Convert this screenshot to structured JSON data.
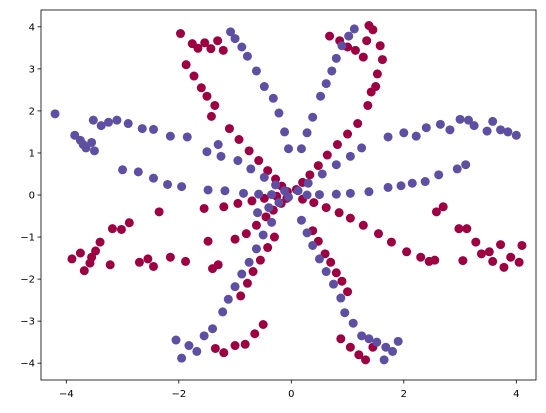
{
  "chart_data": {
    "type": "scatter",
    "title": "",
    "xlabel": "",
    "ylabel": "",
    "xlim": [
      -4.45,
      4.35
    ],
    "ylim": [
      -4.4,
      4.4
    ],
    "xticks": [
      -4,
      -2,
      0,
      2,
      4
    ],
    "yticks": [
      -4,
      -3,
      -2,
      -1,
      0,
      1,
      2,
      3,
      4
    ],
    "grid": false,
    "legend": "none",
    "series": [
      {
        "color": "#9e0142",
        "points": [
          [
            -1.97,
            3.84
          ],
          [
            -1.76,
            3.6
          ],
          [
            -1.66,
            3.49
          ],
          [
            -1.54,
            3.62
          ],
          [
            -1.43,
            3.48
          ],
          [
            -1.31,
            3.67
          ],
          [
            -1.21,
            3.44
          ],
          [
            -1.87,
            3.1
          ],
          [
            -1.73,
            2.83
          ],
          [
            -1.6,
            2.55
          ],
          [
            -1.5,
            2.35
          ],
          [
            -1.36,
            2.13
          ],
          [
            -1.42,
            1.87
          ],
          [
            -1.1,
            1.58
          ],
          [
            -0.93,
            1.32
          ],
          [
            -0.75,
            1.05
          ],
          [
            -0.58,
            0.82
          ],
          [
            -0.42,
            0.58
          ],
          [
            -0.28,
            0.38
          ],
          [
            -0.17,
            0.21
          ],
          [
            -0.07,
            0.08
          ],
          [
            0.68,
            3.78
          ],
          [
            0.86,
            3.67
          ],
          [
            1.0,
            3.52
          ],
          [
            1.14,
            3.44
          ],
          [
            1.28,
            3.28
          ],
          [
            1.34,
            3.67
          ],
          [
            1.45,
            3.93
          ],
          [
            1.38,
            4.03
          ],
          [
            1.58,
            3.55
          ],
          [
            1.62,
            3.22
          ],
          [
            1.53,
            2.88
          ],
          [
            1.5,
            2.58
          ],
          [
            1.42,
            2.45
          ],
          [
            1.36,
            2.13
          ],
          [
            1.18,
            1.7
          ],
          [
            1.0,
            1.45
          ],
          [
            0.82,
            1.2
          ],
          [
            0.64,
            0.95
          ],
          [
            0.48,
            0.7
          ],
          [
            0.33,
            0.48
          ],
          [
            0.2,
            0.3
          ],
          [
            0.09,
            0.13
          ],
          [
            -3.9,
            -1.52
          ],
          [
            -3.75,
            -1.38
          ],
          [
            -3.68,
            -1.8
          ],
          [
            -3.58,
            -1.62
          ],
          [
            -3.48,
            -1.33
          ],
          [
            -3.4,
            -1.12
          ],
          [
            -3.55,
            -1.48
          ],
          [
            -3.22,
            -1.66
          ],
          [
            -3.18,
            -0.8
          ],
          [
            -3.02,
            -0.82
          ],
          [
            -2.88,
            -0.66
          ],
          [
            -2.7,
            -1.6
          ],
          [
            -2.55,
            -1.52
          ],
          [
            -2.45,
            -1.7
          ],
          [
            -2.35,
            -0.4
          ],
          [
            -2.15,
            -1.48
          ],
          [
            -1.88,
            -1.58
          ],
          [
            -1.55,
            -0.32
          ],
          [
            -1.4,
            -1.75
          ],
          [
            -1.3,
            -1.66
          ],
          [
            -1.48,
            -1.1
          ],
          [
            -1.0,
            -1.05
          ],
          [
            -0.8,
            -0.92
          ],
          [
            -0.62,
            -0.72
          ],
          [
            -0.45,
            -0.52
          ],
          [
            -0.32,
            -0.36
          ],
          [
            -0.18,
            -0.2
          ],
          [
            -0.08,
            -0.08
          ],
          [
            -1.2,
            -0.28
          ],
          [
            -0.95,
            -0.2
          ],
          [
            -0.7,
            -0.14
          ],
          [
            -0.48,
            -0.08
          ],
          [
            -0.26,
            -0.03
          ],
          [
            0.2,
            -0.1
          ],
          [
            0.4,
            -0.18
          ],
          [
            0.62,
            -0.3
          ],
          [
            0.85,
            -0.42
          ],
          [
            1.05,
            -0.55
          ],
          [
            1.28,
            -0.72
          ],
          [
            1.55,
            -0.92
          ],
          [
            1.78,
            -1.12
          ],
          [
            2.05,
            -1.35
          ],
          [
            2.3,
            -1.48
          ],
          [
            2.45,
            -1.58
          ],
          [
            2.55,
            -1.55
          ],
          [
            2.58,
            -0.4
          ],
          [
            2.7,
            -0.28
          ],
          [
            2.98,
            -0.8
          ],
          [
            3.12,
            -0.8
          ],
          [
            3.05,
            -1.56
          ],
          [
            3.28,
            -1.12
          ],
          [
            3.38,
            -1.4
          ],
          [
            3.52,
            -1.35
          ],
          [
            3.58,
            -1.58
          ],
          [
            3.72,
            -1.18
          ],
          [
            3.9,
            -1.48
          ],
          [
            4.05,
            -1.6
          ],
          [
            4.1,
            -1.2
          ],
          [
            3.78,
            -1.72
          ],
          [
            0.38,
            -0.85
          ],
          [
            0.48,
            -1.1
          ],
          [
            0.6,
            -1.4
          ],
          [
            0.7,
            -1.6
          ],
          [
            0.8,
            -1.85
          ],
          [
            0.9,
            -2.05
          ],
          [
            1.0,
            -2.3
          ],
          [
            -0.3,
            -1.0
          ],
          [
            -0.42,
            -1.25
          ],
          [
            -0.55,
            -1.55
          ],
          [
            -0.68,
            -1.82
          ],
          [
            -0.78,
            -2.1
          ],
          [
            -0.9,
            -2.4
          ],
          [
            -0.5,
            -3.08
          ],
          [
            -0.65,
            -3.3
          ],
          [
            -0.82,
            -3.55
          ],
          [
            -1.0,
            -3.58
          ],
          [
            -1.2,
            -3.75
          ],
          [
            -1.35,
            -3.65
          ],
          [
            0.88,
            -3.42
          ],
          [
            1.05,
            -3.62
          ],
          [
            1.2,
            -3.8
          ],
          [
            1.32,
            -3.92
          ],
          [
            1.45,
            -3.62
          ]
        ]
      },
      {
        "color": "#5e4fa2",
        "points": [
          [
            -4.2,
            1.93
          ],
          [
            -3.85,
            1.42
          ],
          [
            -3.75,
            1.3
          ],
          [
            -3.65,
            1.12
          ],
          [
            -3.55,
            1.25
          ],
          [
            -3.5,
            1.05
          ],
          [
            -3.7,
            1.2
          ],
          [
            -3.52,
            1.78
          ],
          [
            -3.38,
            1.65
          ],
          [
            -3.25,
            1.73
          ],
          [
            -3.1,
            1.78
          ],
          [
            -2.9,
            1.7
          ],
          [
            -2.65,
            1.58
          ],
          [
            -2.45,
            1.56
          ],
          [
            -2.15,
            1.4
          ],
          [
            -1.85,
            1.38
          ],
          [
            -1.3,
            1.2
          ],
          [
            -1.5,
            1.03
          ],
          [
            -1.25,
            0.92
          ],
          [
            -0.95,
            0.82
          ],
          [
            -0.72,
            0.62
          ],
          [
            -0.48,
            0.42
          ],
          [
            -0.28,
            0.24
          ],
          [
            -0.12,
            0.1
          ],
          [
            -3.0,
            0.6
          ],
          [
            -2.72,
            0.55
          ],
          [
            -2.45,
            0.4
          ],
          [
            -2.2,
            0.25
          ],
          [
            -1.95,
            0.2
          ],
          [
            -1.48,
            0.12
          ],
          [
            -1.18,
            0.1
          ],
          [
            -0.85,
            0.04
          ],
          [
            -0.58,
            0.02
          ],
          [
            -0.35,
            0.01
          ],
          [
            -1.08,
            3.88
          ],
          [
            -1.0,
            3.72
          ],
          [
            -0.88,
            3.52
          ],
          [
            -0.78,
            3.3
          ],
          [
            -0.62,
            2.95
          ],
          [
            -0.48,
            2.58
          ],
          [
            -0.32,
            2.3
          ],
          [
            -0.22,
            1.95
          ],
          [
            -0.12,
            1.5
          ],
          [
            -0.05,
            1.1
          ],
          [
            0.52,
            2.35
          ],
          [
            0.62,
            2.65
          ],
          [
            0.72,
            2.95
          ],
          [
            0.8,
            3.25
          ],
          [
            0.9,
            3.55
          ],
          [
            1.02,
            3.78
          ],
          [
            1.12,
            3.95
          ],
          [
            0.38,
            1.85
          ],
          [
            0.28,
            1.48
          ],
          [
            0.18,
            1.1
          ],
          [
            1.72,
            1.38
          ],
          [
            2.0,
            1.48
          ],
          [
            2.22,
            1.4
          ],
          [
            2.4,
            1.6
          ],
          [
            2.65,
            1.68
          ],
          [
            2.82,
            1.55
          ],
          [
            3.0,
            1.8
          ],
          [
            3.15,
            1.78
          ],
          [
            3.25,
            1.65
          ],
          [
            3.48,
            1.52
          ],
          [
            3.58,
            1.75
          ],
          [
            3.72,
            1.55
          ],
          [
            3.85,
            1.5
          ],
          [
            4.0,
            1.42
          ],
          [
            3.1,
            0.72
          ],
          [
            2.95,
            0.62
          ],
          [
            2.62,
            0.48
          ],
          [
            2.38,
            0.32
          ],
          [
            2.15,
            0.28
          ],
          [
            1.95,
            0.22
          ],
          [
            1.72,
            0.18
          ],
          [
            1.38,
            0.08
          ],
          [
            1.05,
            0.04
          ],
          [
            0.8,
            0.02
          ],
          [
            0.5,
            0.01
          ],
          [
            0.28,
            0.0
          ],
          [
            1.25,
            1.12
          ],
          [
            1.05,
            0.92
          ],
          [
            0.8,
            0.72
          ],
          [
            0.55,
            0.5
          ],
          [
            0.3,
            0.28
          ],
          [
            0.12,
            0.1
          ],
          [
            -0.35,
            -0.65
          ],
          [
            -0.5,
            -0.95
          ],
          [
            -0.62,
            -1.28
          ],
          [
            -0.75,
            -1.6
          ],
          [
            -0.88,
            -1.88
          ],
          [
            -1.0,
            -2.18
          ],
          [
            -1.12,
            -2.48
          ],
          [
            -1.22,
            -2.78
          ],
          [
            -1.4,
            -3.18
          ],
          [
            -1.55,
            -3.35
          ],
          [
            -1.68,
            -3.72
          ],
          [
            -1.82,
            -3.58
          ],
          [
            -1.95,
            -3.88
          ],
          [
            -2.05,
            -3.45
          ],
          [
            0.18,
            -0.6
          ],
          [
            0.28,
            -0.9
          ],
          [
            0.38,
            -1.2
          ],
          [
            0.5,
            -1.52
          ],
          [
            0.62,
            -1.82
          ],
          [
            0.75,
            -2.12
          ],
          [
            0.88,
            -2.45
          ],
          [
            0.95,
            -2.8
          ],
          [
            1.1,
            -3.05
          ],
          [
            1.25,
            -3.35
          ],
          [
            1.38,
            -3.42
          ],
          [
            1.52,
            -3.5
          ],
          [
            1.68,
            -3.62
          ],
          [
            1.8,
            -3.72
          ],
          [
            1.65,
            -3.92
          ],
          [
            1.9,
            -3.48
          ],
          [
            -0.6,
            -0.42
          ],
          [
            -0.4,
            -0.3
          ],
          [
            -0.22,
            -0.18
          ],
          [
            -0.05,
            -0.05
          ]
        ]
      }
    ]
  }
}
